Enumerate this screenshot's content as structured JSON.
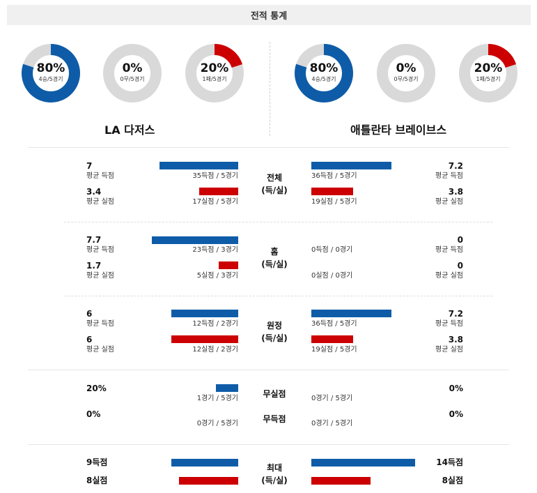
{
  "header": {
    "title": "전적 통계"
  },
  "colors": {
    "blue": "#0e5ca8",
    "red": "#cc0000",
    "ring_gray": "#d9d9d9"
  },
  "teams": {
    "home": {
      "name": "LA 다저스",
      "donuts": [
        {
          "pct": "80%",
          "sub": "4승/5경기",
          "value": 0.8,
          "color": "#0e5ca8"
        },
        {
          "pct": "0%",
          "sub": "0무/5경기",
          "value": 0.0,
          "color": "#0e5ca8"
        },
        {
          "pct": "20%",
          "sub": "1패/5경기",
          "value": 0.2,
          "color": "#cc0000"
        }
      ]
    },
    "away": {
      "name": "애틀란타 브레이브스",
      "donuts": [
        {
          "pct": "80%",
          "sub": "4승/5경기",
          "value": 0.8,
          "color": "#0e5ca8"
        },
        {
          "pct": "0%",
          "sub": "0무/5경기",
          "value": 0.0,
          "color": "#0e5ca8"
        },
        {
          "pct": "20%",
          "sub": "1패/5경기",
          "value": 0.2,
          "color": "#cc0000"
        }
      ]
    }
  },
  "sections": {
    "overall": {
      "label1": "전체",
      "label2": "(득/실)",
      "home_scored_val": "7",
      "home_scored_lbl": "평균 득점",
      "home_scored_bar": "35득점 / 5경기",
      "home_allowed_val": "3.4",
      "home_allowed_lbl": "평균 실점",
      "home_allowed_bar": "17실점 / 5경기",
      "away_scored_val": "7.2",
      "away_scored_lbl": "평균 득점",
      "away_scored_bar": "36득점 / 5경기",
      "away_allowed_val": "3.8",
      "away_allowed_lbl": "평균 실점",
      "away_allowed_bar": "19실점 / 5경기"
    },
    "home": {
      "label1": "홈",
      "label2": "(득/실)",
      "home_scored_val": "7.7",
      "home_scored_lbl": "평균 득점",
      "home_scored_bar": "23득점 / 3경기",
      "home_allowed_val": "1.7",
      "home_allowed_lbl": "평균 실점",
      "home_allowed_bar": "5실점 / 3경기",
      "away_scored_val": "0",
      "away_scored_lbl": "평균 득점",
      "away_scored_bar": "0득점 / 0경기",
      "away_allowed_val": "0",
      "away_allowed_lbl": "평균 실점",
      "away_allowed_bar": "0실점 / 0경기"
    },
    "away": {
      "label1": "원정",
      "label2": "(득/실)",
      "home_scored_val": "6",
      "home_scored_lbl": "평균 득점",
      "home_scored_bar": "12득점 / 2경기",
      "home_allowed_val": "6",
      "home_allowed_lbl": "평균 실점",
      "home_allowed_bar": "12실점 / 2경기",
      "away_scored_val": "7.2",
      "away_scored_lbl": "평균 득점",
      "away_scored_bar": "36득점 / 5경기",
      "away_allowed_val": "3.8",
      "away_allowed_lbl": "평균 실점",
      "away_allowed_bar": "19실점 / 5경기"
    },
    "shutout": {
      "label_shutout": "무실점",
      "label_scoreless": "무득점",
      "home_shutout_val": "20%",
      "home_shutout_bar": "1경기 / 5경기",
      "home_scoreless_val": "0%",
      "home_scoreless_bar": "0경기 / 5경기",
      "away_shutout_val": "0%",
      "away_shutout_bar": "0경기 / 5경기",
      "away_scoreless_val": "0%",
      "away_scoreless_bar": "0경기 / 5경기"
    },
    "max": {
      "label1": "최대",
      "label2": "(득/실)",
      "home_scored_val": "9득점",
      "home_allowed_val": "8실점",
      "away_scored_val": "14득점",
      "away_allowed_val": "8실점"
    }
  }
}
